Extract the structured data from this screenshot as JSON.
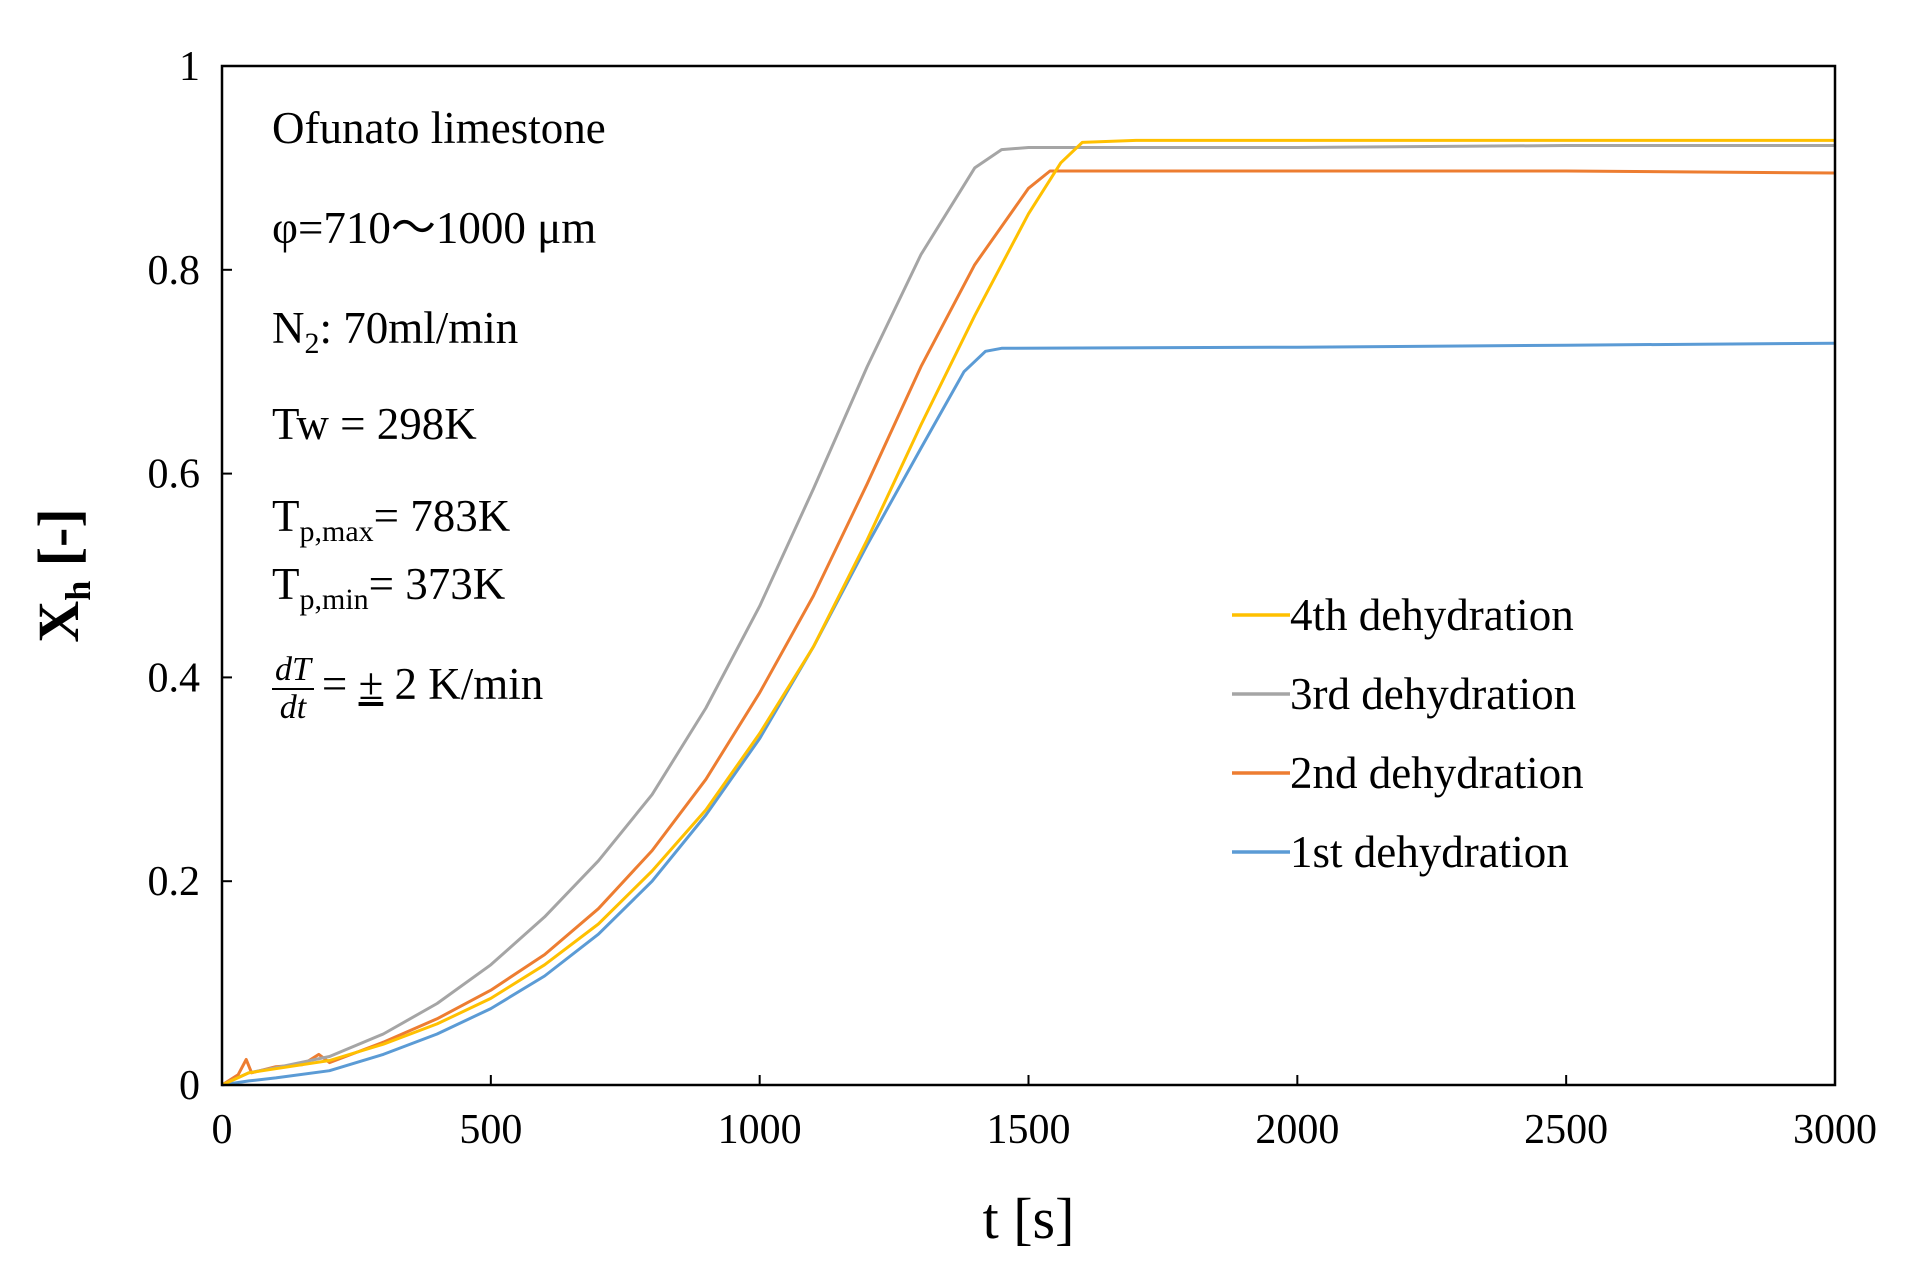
{
  "chart_data": {
    "type": "line",
    "title": "",
    "xlabel": "t [s]",
    "ylabel": {
      "main": "X",
      "sub": "h",
      "unit": " [-]"
    },
    "xlim": [
      0,
      3000
    ],
    "ylim": [
      0,
      1
    ],
    "xticks": [
      0,
      500,
      1000,
      1500,
      2000,
      2500,
      3000
    ],
    "yticks": [
      0,
      0.2,
      0.4,
      0.6,
      0.8,
      1
    ],
    "ytick_labels": [
      "0",
      "0.2",
      "0.4",
      "0.6",
      "0.8",
      "1"
    ],
    "grid": false,
    "legend_position": "bottom-right",
    "series": [
      {
        "name": "4th dehydration",
        "color": "#FFC000",
        "points": [
          [
            0,
            0
          ],
          [
            50,
            0.012
          ],
          [
            100,
            0.016
          ],
          [
            200,
            0.024
          ],
          [
            300,
            0.04
          ],
          [
            400,
            0.06
          ],
          [
            500,
            0.085
          ],
          [
            600,
            0.118
          ],
          [
            700,
            0.158
          ],
          [
            800,
            0.21
          ],
          [
            900,
            0.27
          ],
          [
            1000,
            0.345
          ],
          [
            1100,
            0.43
          ],
          [
            1200,
            0.535
          ],
          [
            1300,
            0.648
          ],
          [
            1400,
            0.755
          ],
          [
            1500,
            0.855
          ],
          [
            1560,
            0.905
          ],
          [
            1600,
            0.925
          ],
          [
            1700,
            0.927
          ],
          [
            2000,
            0.927
          ],
          [
            2500,
            0.927
          ],
          [
            3000,
            0.927
          ]
        ]
      },
      {
        "name": "3rd dehydration",
        "color": "#A5A5A5",
        "points": [
          [
            0,
            0
          ],
          [
            50,
            0.012
          ],
          [
            100,
            0.017
          ],
          [
            200,
            0.028
          ],
          [
            300,
            0.05
          ],
          [
            400,
            0.08
          ],
          [
            500,
            0.118
          ],
          [
            600,
            0.165
          ],
          [
            700,
            0.22
          ],
          [
            800,
            0.285
          ],
          [
            900,
            0.37
          ],
          [
            1000,
            0.47
          ],
          [
            1100,
            0.585
          ],
          [
            1200,
            0.705
          ],
          [
            1300,
            0.815
          ],
          [
            1400,
            0.9
          ],
          [
            1450,
            0.918
          ],
          [
            1500,
            0.92
          ],
          [
            2000,
            0.92
          ],
          [
            2500,
            0.922
          ],
          [
            3000,
            0.922
          ]
        ]
      },
      {
        "name": "2nd dehydration",
        "color": "#ED7D31",
        "points": [
          [
            0,
            0
          ],
          [
            30,
            0.01
          ],
          [
            45,
            0.025
          ],
          [
            55,
            0.012
          ],
          [
            100,
            0.018
          ],
          [
            150,
            0.02
          ],
          [
            180,
            0.03
          ],
          [
            200,
            0.022
          ],
          [
            300,
            0.042
          ],
          [
            400,
            0.065
          ],
          [
            500,
            0.093
          ],
          [
            600,
            0.128
          ],
          [
            700,
            0.173
          ],
          [
            800,
            0.23
          ],
          [
            900,
            0.3
          ],
          [
            1000,
            0.385
          ],
          [
            1100,
            0.48
          ],
          [
            1200,
            0.59
          ],
          [
            1300,
            0.705
          ],
          [
            1400,
            0.805
          ],
          [
            1500,
            0.88
          ],
          [
            1540,
            0.897
          ],
          [
            1600,
            0.897
          ],
          [
            2000,
            0.897
          ],
          [
            2500,
            0.897
          ],
          [
            3000,
            0.895
          ]
        ]
      },
      {
        "name": "1st dehydration",
        "color": "#5B9BD5",
        "points": [
          [
            0,
            0
          ],
          [
            50,
            0.004
          ],
          [
            100,
            0.007
          ],
          [
            200,
            0.014
          ],
          [
            300,
            0.03
          ],
          [
            400,
            0.05
          ],
          [
            500,
            0.075
          ],
          [
            600,
            0.107
          ],
          [
            700,
            0.148
          ],
          [
            800,
            0.2
          ],
          [
            900,
            0.265
          ],
          [
            1000,
            0.34
          ],
          [
            1100,
            0.43
          ],
          [
            1200,
            0.53
          ],
          [
            1300,
            0.625
          ],
          [
            1380,
            0.7
          ],
          [
            1420,
            0.72
          ],
          [
            1450,
            0.723
          ],
          [
            2000,
            0.724
          ],
          [
            2500,
            0.726
          ],
          [
            3000,
            0.728
          ]
        ]
      }
    ]
  },
  "annotations": {
    "material": "Ofunato limestone",
    "particle_size": "φ=710～1000 μm",
    "n2_prefix": "N",
    "n2_sub": "2",
    "n2_suffix": ": 70ml/min",
    "tw": "Tw = 298K",
    "tp_max_prefix": "T",
    "tp_max_sub": "p,max",
    "tp_max_suffix": "= 783K",
    "tp_min_prefix": "T",
    "tp_min_sub": "p,min",
    "tp_min_suffix": "= 373K",
    "rate_num": "dT",
    "rate_den": "dt",
    "rate_eq": "= ",
    "rate_pm": "±",
    "rate_suffix": " 2 K/min"
  }
}
